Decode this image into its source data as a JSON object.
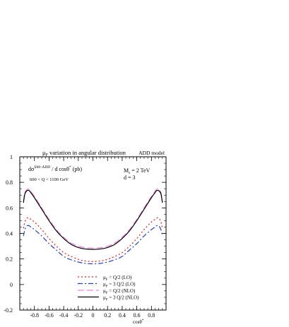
{
  "chart_data": {
    "type": "line",
    "title": "μ_F variation in angular distribution",
    "title_parts": {
      "mu": "μ",
      "sub": "F",
      "rest": " variation in angular distribution"
    },
    "model_label": "ADD model",
    "ylabel": "dσ^{SM+ADD} / d cosθ* (pb)",
    "ylabel_parts": {
      "pre": "dσ",
      "sup": "SM+ADD",
      "post": " / d cosθ",
      "star": "*",
      "unit": " (pb)"
    },
    "xlabel": "cosθ*",
    "xlabel_parts": {
      "main": "cosθ",
      "star": "*"
    },
    "cut_label": "600 < Q < 1100 GeV",
    "param_ms": {
      "pre": "M",
      "sub": "s",
      "post": " = 2 TeV"
    },
    "param_d": "d = 3",
    "xlim": [
      -1,
      1
    ],
    "ylim": [
      -0.2,
      1.0
    ],
    "x_ticks": [
      -0.8,
      -0.6,
      -0.4,
      -0.2,
      0,
      0.2,
      0.4,
      0.6,
      0.8
    ],
    "x_tick_labels": [
      "-0.8",
      "-0.6",
      "-0.4",
      "-0.2",
      "0",
      "0.2",
      "0.4",
      "0.6",
      "0.8"
    ],
    "y_ticks": [
      -0.2,
      0,
      0.2,
      0.4,
      0.6,
      0.8,
      1
    ],
    "y_tick_labels": [
      "-0.2",
      "0",
      "0.2",
      "0.4",
      "0.6",
      "0.8",
      "1"
    ],
    "grid": false,
    "legend_position": "bottom-center",
    "x": [
      -0.95,
      -0.93,
      -0.9,
      -0.87,
      -0.85,
      -0.8,
      -0.7,
      -0.6,
      -0.5,
      -0.4,
      -0.3,
      -0.2,
      -0.1,
      0,
      0.1,
      0.2,
      0.3,
      0.4,
      0.5,
      0.6,
      0.7,
      0.8,
      0.85,
      0.87,
      0.9,
      0.93,
      0.95
    ],
    "series": [
      {
        "name": "μ_F = Q/2 (LO)",
        "legend_parts": {
          "mu": "μ",
          "sub": "F",
          "rest": " = Q/2   (LO)"
        },
        "color": "#d62020",
        "dash": "2,3",
        "values": [
          0.44,
          0.49,
          0.52,
          0.52,
          0.51,
          0.49,
          0.43,
          0.36,
          0.3,
          0.25,
          0.22,
          0.197,
          0.184,
          0.18,
          0.184,
          0.197,
          0.22,
          0.25,
          0.3,
          0.36,
          0.43,
          0.49,
          0.51,
          0.52,
          0.52,
          0.49,
          0.44
        ]
      },
      {
        "name": "μ_F = 3 Q/2 (LO)",
        "legend_parts": {
          "mu": "μ",
          "sub": "F",
          "rest": " = 3 Q/2 (LO)"
        },
        "color": "#2040d0",
        "dash": "7,3,2,3",
        "values": [
          0.38,
          0.43,
          0.46,
          0.46,
          0.45,
          0.43,
          0.38,
          0.32,
          0.27,
          0.22,
          0.194,
          0.176,
          0.165,
          0.162,
          0.165,
          0.176,
          0.194,
          0.22,
          0.27,
          0.32,
          0.38,
          0.43,
          0.45,
          0.46,
          0.46,
          0.43,
          0.38
        ]
      },
      {
        "name": "μ_F = Q/2 (NLO)",
        "legend_parts": {
          "mu": "μ",
          "sub": "F",
          "rest": " = Q/2   (NLO)"
        },
        "color": "#f080e0",
        "dash": "9,4",
        "values": [
          0.65,
          0.72,
          0.745,
          0.745,
          0.73,
          0.69,
          0.6,
          0.51,
          0.43,
          0.37,
          0.325,
          0.3,
          0.288,
          0.285,
          0.288,
          0.3,
          0.325,
          0.37,
          0.43,
          0.51,
          0.6,
          0.69,
          0.73,
          0.745,
          0.745,
          0.72,
          0.65
        ]
      },
      {
        "name": "μ_F = 3 Q/2 (NLO)",
        "legend_parts": {
          "mu": "μ",
          "sub": "F",
          "rest": " = 3 Q/2 (NLO)"
        },
        "color": "#000000",
        "dash": "",
        "values": [
          0.64,
          0.71,
          0.735,
          0.735,
          0.72,
          0.68,
          0.59,
          0.5,
          0.42,
          0.36,
          0.315,
          0.29,
          0.278,
          0.275,
          0.278,
          0.29,
          0.315,
          0.36,
          0.42,
          0.5,
          0.59,
          0.68,
          0.72,
          0.735,
          0.735,
          0.71,
          0.64
        ]
      }
    ]
  }
}
